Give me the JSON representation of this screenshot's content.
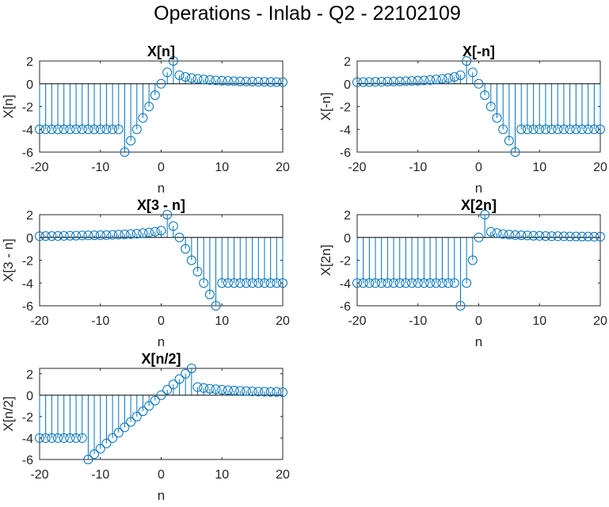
{
  "figure": {
    "title": "Operations - Inlab - Q2 - 22102109"
  },
  "colors": {
    "stem": "#0072BD",
    "axis": "#262626",
    "zero_line": "#000000",
    "background": "#ffffff"
  },
  "chart_data": [
    {
      "type": "stem",
      "title": "X[n]",
      "xlabel": "n",
      "ylabel": "X[n]",
      "xlim": [
        -20,
        20
      ],
      "ylim": [
        -6,
        2
      ],
      "xticks": [
        -20,
        -10,
        0,
        10,
        20
      ],
      "yticks": [
        -6,
        -4,
        -2,
        0,
        2
      ],
      "xtick_labels": [
        "-20",
        "-10",
        "0",
        "10",
        "20"
      ],
      "ytick_labels": [
        "-6",
        "-4",
        "-2",
        "0",
        "2"
      ],
      "grid": false,
      "x": [
        -20,
        -19,
        -18,
        -17,
        -16,
        -15,
        -14,
        -13,
        -12,
        -11,
        -10,
        -9,
        -8,
        -7,
        -6,
        -5,
        -4,
        -3,
        -2,
        -1,
        0,
        1,
        2,
        3,
        4,
        5,
        6,
        7,
        8,
        9,
        10,
        11,
        12,
        13,
        14,
        15,
        16,
        17,
        18,
        19,
        20
      ],
      "y": [
        -4,
        -4,
        -4,
        -4,
        -4,
        -4,
        -4,
        -4,
        -4,
        -4,
        -4,
        -4,
        -4,
        -4,
        -6,
        -5,
        -4,
        -3,
        -2,
        -1,
        0,
        1,
        2,
        0.75,
        0.6,
        0.5,
        0.43,
        0.38,
        0.33,
        0.3,
        0.27,
        0.25,
        0.23,
        0.21,
        0.2,
        0.19,
        0.18,
        0.17,
        0.16,
        0.15,
        0.14
      ]
    },
    {
      "type": "stem",
      "title": "X[-n]",
      "xlabel": "n",
      "ylabel": "X[-n]",
      "xlim": [
        -20,
        20
      ],
      "ylim": [
        -6,
        2
      ],
      "xticks": [
        -20,
        -10,
        0,
        10,
        20
      ],
      "yticks": [
        -6,
        -4,
        -2,
        0,
        2
      ],
      "xtick_labels": [
        "-20",
        "-10",
        "0",
        "10",
        "20"
      ],
      "ytick_labels": [
        "-6",
        "-4",
        "-2",
        "0",
        "2"
      ],
      "grid": false,
      "x": [
        -20,
        -19,
        -18,
        -17,
        -16,
        -15,
        -14,
        -13,
        -12,
        -11,
        -10,
        -9,
        -8,
        -7,
        -6,
        -5,
        -4,
        -3,
        -2,
        -1,
        0,
        1,
        2,
        3,
        4,
        5,
        6,
        7,
        8,
        9,
        10,
        11,
        12,
        13,
        14,
        15,
        16,
        17,
        18,
        19,
        20
      ],
      "y": [
        0.14,
        0.15,
        0.16,
        0.17,
        0.18,
        0.19,
        0.2,
        0.21,
        0.23,
        0.25,
        0.27,
        0.3,
        0.33,
        0.38,
        0.43,
        0.5,
        0.6,
        0.75,
        2,
        1,
        0,
        -1,
        -2,
        -3,
        -4,
        -5,
        -6,
        -4,
        -4,
        -4,
        -4,
        -4,
        -4,
        -4,
        -4,
        -4,
        -4,
        -4,
        -4,
        -4,
        -4
      ]
    },
    {
      "type": "stem",
      "title": "X[3 - n]",
      "xlabel": "n",
      "ylabel": "X[3 - n]",
      "xlim": [
        -20,
        20
      ],
      "ylim": [
        -6,
        2
      ],
      "xticks": [
        -20,
        -10,
        0,
        10,
        20
      ],
      "yticks": [
        -6,
        -4,
        -2,
        0,
        2
      ],
      "xtick_labels": [
        "-20",
        "-10",
        "0",
        "10",
        "20"
      ],
      "ytick_labels": [
        "-6",
        "-4",
        "-2",
        "0",
        "2"
      ],
      "grid": false,
      "x": [
        -20,
        -19,
        -18,
        -17,
        -16,
        -15,
        -14,
        -13,
        -12,
        -11,
        -10,
        -9,
        -8,
        -7,
        -6,
        -5,
        -4,
        -3,
        -2,
        -1,
        0,
        1,
        2,
        3,
        4,
        5,
        6,
        7,
        8,
        9,
        10,
        11,
        12,
        13,
        14,
        15,
        16,
        17,
        18,
        19,
        20
      ],
      "y": [
        0.11,
        0.12,
        0.12,
        0.13,
        0.14,
        0.15,
        0.16,
        0.17,
        0.18,
        0.19,
        0.2,
        0.21,
        0.23,
        0.25,
        0.27,
        0.3,
        0.33,
        0.38,
        0.43,
        0.5,
        0.6,
        2,
        1,
        0,
        -1,
        -2,
        -3,
        -4,
        -5,
        -6,
        -4,
        -4,
        -4,
        -4,
        -4,
        -4,
        -4,
        -4,
        -4,
        -4,
        -4
      ]
    },
    {
      "type": "stem",
      "title": "X[2n]",
      "xlabel": "n",
      "ylabel": "X[2n]",
      "xlim": [
        -20,
        20
      ],
      "ylim": [
        -6,
        2
      ],
      "xticks": [
        -20,
        -10,
        0,
        10,
        20
      ],
      "yticks": [
        -6,
        -4,
        -2,
        0,
        2
      ],
      "xtick_labels": [
        "-20",
        "-10",
        "0",
        "10",
        "20"
      ],
      "ytick_labels": [
        "-6",
        "-4",
        "-2",
        "0",
        "2"
      ],
      "grid": false,
      "x": [
        -20,
        -19,
        -18,
        -17,
        -16,
        -15,
        -14,
        -13,
        -12,
        -11,
        -10,
        -9,
        -8,
        -7,
        -6,
        -5,
        -4,
        -3,
        -2,
        -1,
        0,
        1,
        2,
        3,
        4,
        5,
        6,
        7,
        8,
        9,
        10,
        11,
        12,
        13,
        14,
        15,
        16,
        17,
        18,
        19,
        20
      ],
      "y": [
        -4,
        -4,
        -4,
        -4,
        -4,
        -4,
        -4,
        -4,
        -4,
        -4,
        -4,
        -4,
        -4,
        -4,
        -4,
        -4,
        -4,
        -6,
        -4,
        -2,
        0,
        2,
        0.5,
        0.38,
        0.3,
        0.25,
        0.21,
        0.19,
        0.17,
        0.15,
        0.14,
        0.12,
        0.11,
        0.11,
        0.1,
        0.09,
        0.09,
        0.08,
        0.08,
        0.07,
        0.07
      ]
    },
    {
      "type": "stem",
      "title": "X[n/2]",
      "xlabel": "n",
      "ylabel": "X[n/2]",
      "xlim": [
        -20,
        20
      ],
      "ylim": [
        -6,
        2.5
      ],
      "xticks": [
        -20,
        -10,
        0,
        10,
        20
      ],
      "yticks": [
        -6,
        -4,
        -2,
        0,
        2
      ],
      "xtick_labels": [
        "-20",
        "-10",
        "0",
        "10",
        "20"
      ],
      "ytick_labels": [
        "-6",
        "-4",
        "-2",
        "0",
        "2"
      ],
      "grid": false,
      "x": [
        -20,
        -19,
        -18,
        -17,
        -16,
        -15,
        -14,
        -13,
        -12,
        -11,
        -10,
        -9,
        -8,
        -7,
        -6,
        -5,
        -4,
        -3,
        -2,
        -1,
        0,
        1,
        2,
        3,
        4,
        5,
        6,
        7,
        8,
        9,
        10,
        11,
        12,
        13,
        14,
        15,
        16,
        17,
        18,
        19,
        20
      ],
      "y": [
        -4,
        -4,
        -4,
        -4,
        -4,
        -4,
        -4,
        -4,
        -6,
        -5.5,
        -5,
        -4.5,
        -4,
        -3.5,
        -3,
        -2.5,
        -2,
        -1.5,
        -1,
        -0.5,
        0,
        0.5,
        1,
        1.5,
        2,
        2.5,
        0.75,
        0.67,
        0.6,
        0.55,
        0.5,
        0.46,
        0.43,
        0.4,
        0.38,
        0.35,
        0.33,
        0.32,
        0.3,
        0.29,
        0.27
      ]
    }
  ]
}
